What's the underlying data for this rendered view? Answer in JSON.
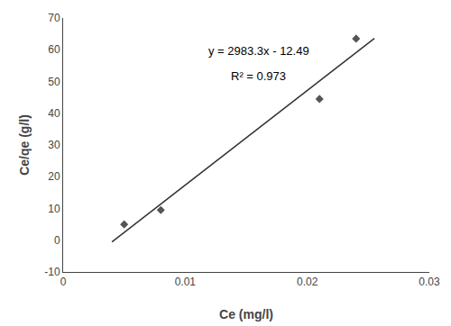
{
  "chart_data": {
    "type": "scatter",
    "x_label": "Ce (mg/l)",
    "y_label": "Ce/qe (g/l)",
    "series": [
      {
        "type": "scatter",
        "x": [
          0.005,
          0.008,
          0.021,
          0.024
        ],
        "values": [
          5.0,
          9.5,
          44.5,
          63.5
        ],
        "color": "#555555",
        "marker": "diamond"
      },
      {
        "type": "line",
        "x": [
          0.004,
          0.0255
        ],
        "values": [
          -0.5568,
          63.58415
        ],
        "color": "#333333",
        "line_style": "solid"
      }
    ],
    "annotations": [
      {
        "text": "y = 2983.3x - 12.49",
        "x": 0.016,
        "y": 57
      },
      {
        "text": "R² = 0.973",
        "x": 0.016,
        "y": 49
      }
    ],
    "xlim": [
      0,
      0.03
    ],
    "ylim": [
      -10,
      70
    ],
    "xticks": [
      0,
      0.01,
      0.02,
      0.03
    ],
    "yticks": [
      -10,
      0,
      10,
      20,
      30,
      40,
      50,
      60,
      70
    ],
    "grid": false
  }
}
